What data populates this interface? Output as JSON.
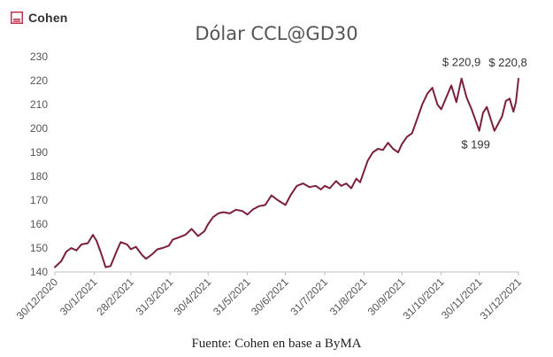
{
  "logo": {
    "text": "Cohen",
    "icon": "cohen-logo-icon",
    "color": "#c0334d"
  },
  "source_note": "Fuente: Cohen en base a ByMA",
  "chart_data": {
    "type": "line",
    "title": "Dólar CCL@GD30",
    "xlabel": "",
    "ylabel": "",
    "ylim": [
      140,
      230
    ],
    "yticks": [
      140,
      150,
      160,
      170,
      180,
      190,
      200,
      210,
      220,
      230
    ],
    "xlim": [
      "2020-12-30",
      "2021-12-31"
    ],
    "xticks": [
      "30/12/2020",
      "30/1/2021",
      "28/2/2021",
      "31/3/2021",
      "30/4/2021",
      "31/5/2021",
      "30/6/2021",
      "31/7/2021",
      "31/8/2021",
      "30/9/2021",
      "31/10/2021",
      "30/11/2021",
      "31/12/2021"
    ],
    "grid": false,
    "line_color": "#7a1f3d",
    "series": [
      {
        "x": [
          "2020-12-30",
          "2021-01-04",
          "2021-01-08",
          "2021-01-12",
          "2021-01-16",
          "2021-01-20",
          "2021-01-25",
          "2021-01-29",
          "2021-02-01",
          "2021-02-03",
          "2021-02-05",
          "2021-02-08",
          "2021-02-12",
          "2021-02-17",
          "2021-02-20",
          "2021-02-25",
          "2021-02-28",
          "2021-03-04",
          "2021-03-09",
          "2021-03-12",
          "2021-03-17",
          "2021-03-21",
          "2021-03-25",
          "2021-03-30",
          "2021-04-02",
          "2021-04-07",
          "2021-04-12",
          "2021-04-17",
          "2021-04-22",
          "2021-04-27",
          "2021-04-30",
          "2021-05-04",
          "2021-05-08",
          "2021-05-12",
          "2021-05-17",
          "2021-05-22",
          "2021-05-27",
          "2021-05-31",
          "2021-06-04",
          "2021-06-09",
          "2021-06-14",
          "2021-06-19",
          "2021-06-24",
          "2021-06-30",
          "2021-07-04",
          "2021-07-09",
          "2021-07-14",
          "2021-07-19",
          "2021-07-24",
          "2021-07-28",
          "2021-07-31",
          "2021-08-04",
          "2021-08-09",
          "2021-08-13",
          "2021-08-17",
          "2021-08-21",
          "2021-08-25",
          "2021-08-28",
          "2021-08-31",
          "2021-09-03",
          "2021-09-07",
          "2021-09-11",
          "2021-09-15",
          "2021-09-19",
          "2021-09-23",
          "2021-09-27",
          "2021-09-30",
          "2021-10-04",
          "2021-10-08",
          "2021-10-12",
          "2021-10-16",
          "2021-10-20",
          "2021-10-24",
          "2021-10-28",
          "2021-10-31",
          "2021-11-04",
          "2021-11-08",
          "2021-11-12",
          "2021-11-16",
          "2021-11-20",
          "2021-11-24",
          "2021-11-28",
          "2021-11-30",
          "2021-12-03",
          "2021-12-06",
          "2021-12-09",
          "2021-12-12",
          "2021-12-15",
          "2021-12-18",
          "2021-12-21",
          "2021-12-24",
          "2021-12-27",
          "2021-12-29",
          "2021-12-31"
        ],
        "y": [
          142.0,
          144.5,
          148.5,
          150.0,
          149.0,
          151.5,
          152.0,
          155.5,
          153.0,
          150.0,
          147.0,
          142.0,
          142.5,
          149.0,
          152.5,
          151.5,
          149.5,
          150.5,
          147.0,
          145.5,
          147.5,
          149.5,
          150.0,
          151.0,
          153.5,
          154.5,
          155.5,
          158.0,
          155.0,
          157.0,
          160.0,
          163.0,
          164.5,
          165.0,
          164.5,
          166.0,
          165.5,
          164.0,
          166.0,
          167.5,
          168.0,
          172.0,
          170.0,
          168.0,
          172.0,
          176.0,
          177.0,
          175.5,
          176.0,
          174.5,
          176.0,
          175.0,
          178.0,
          176.0,
          177.0,
          175.0,
          179.0,
          177.5,
          182.0,
          186.5,
          190.0,
          191.5,
          191.0,
          194.0,
          191.5,
          190.0,
          193.5,
          196.5,
          198.0,
          204.0,
          210.0,
          214.5,
          217.0,
          210.0,
          208.0,
          213.0,
          218.0,
          211.0,
          220.9,
          213.0,
          208.0,
          202.0,
          199.0,
          206.5,
          209.0,
          204.0,
          199.0,
          202.0,
          205.0,
          211.5,
          212.5,
          207.0,
          211.0,
          220.8
        ]
      }
    ],
    "annotations": [
      {
        "text": "$ 220,9",
        "x": "2021-11-16",
        "y": 220.9
      },
      {
        "text": "$ 199",
        "x": "2021-11-30",
        "y": 199
      },
      {
        "text": "$ 220,8",
        "x": "2021-12-31",
        "y": 220.8
      }
    ]
  }
}
